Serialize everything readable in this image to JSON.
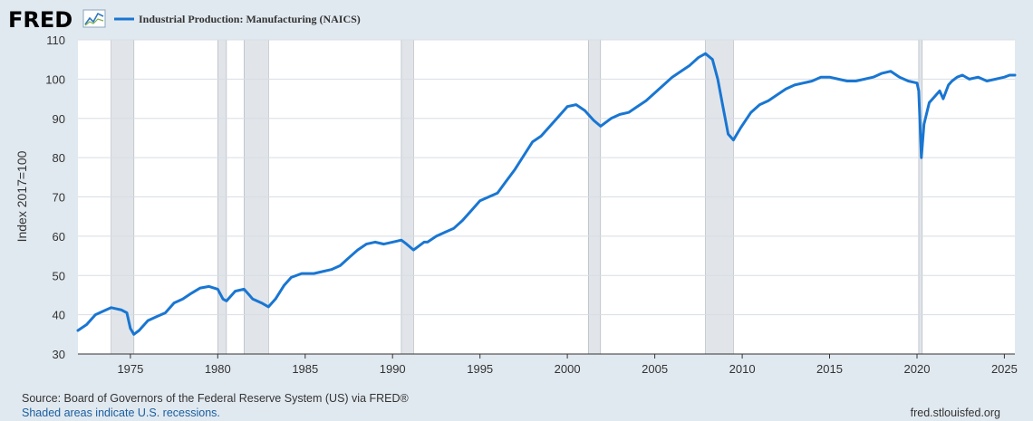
{
  "header": {
    "logo_text": "FRED",
    "logo_icon": "fred-trend-icon"
  },
  "colors": {
    "page_bg": "#e1e9f0",
    "plot_bg": "#ffffff",
    "series": "#1976d2",
    "recession": "#e1e5ea",
    "grid": "#d8dde3"
  },
  "chart_data": {
    "type": "line",
    "title": "",
    "xlabel": "",
    "ylabel": "Index 2017=100",
    "xlim": [
      1972.0,
      2025.6
    ],
    "ylim": [
      30,
      110
    ],
    "grid": "horizontal",
    "legend_position": "top-left",
    "x_tick_labels": [
      "1975",
      "1980",
      "1985",
      "1990",
      "1995",
      "2000",
      "2005",
      "2010",
      "2015",
      "2020",
      "2025"
    ],
    "y_tick_labels": [
      "30",
      "40",
      "50",
      "60",
      "70",
      "80",
      "90",
      "100",
      "110"
    ],
    "recessions": [
      [
        1973.9,
        1975.2
      ],
      [
        1980.0,
        1980.5
      ],
      [
        1981.5,
        1982.9
      ],
      [
        1990.5,
        1991.2
      ],
      [
        2001.2,
        2001.9
      ],
      [
        2007.9,
        2009.5
      ],
      [
        2020.1,
        2020.3
      ]
    ],
    "series": [
      {
        "name": "Industrial Production: Manufacturing (NAICS)",
        "points": [
          [
            1972.0,
            36.0
          ],
          [
            1972.5,
            37.5
          ],
          [
            1973.0,
            40.0
          ],
          [
            1973.5,
            41.0
          ],
          [
            1973.9,
            41.8
          ],
          [
            1974.5,
            41.2
          ],
          [
            1974.8,
            40.5
          ],
          [
            1975.0,
            36.5
          ],
          [
            1975.2,
            35.0
          ],
          [
            1975.5,
            36.0
          ],
          [
            1976.0,
            38.5
          ],
          [
            1976.5,
            39.5
          ],
          [
            1977.0,
            40.5
          ],
          [
            1977.5,
            43.0
          ],
          [
            1978.0,
            44.0
          ],
          [
            1978.5,
            45.5
          ],
          [
            1979.0,
            46.8
          ],
          [
            1979.5,
            47.2
          ],
          [
            1980.0,
            46.5
          ],
          [
            1980.3,
            44.0
          ],
          [
            1980.5,
            43.5
          ],
          [
            1980.8,
            45.0
          ],
          [
            1981.0,
            46.0
          ],
          [
            1981.5,
            46.5
          ],
          [
            1981.8,
            45.0
          ],
          [
            1982.0,
            44.0
          ],
          [
            1982.5,
            43.0
          ],
          [
            1982.9,
            42.0
          ],
          [
            1983.3,
            44.0
          ],
          [
            1983.8,
            47.5
          ],
          [
            1984.2,
            49.5
          ],
          [
            1984.8,
            50.5
          ],
          [
            1985.5,
            50.5
          ],
          [
            1986.0,
            51.0
          ],
          [
            1986.5,
            51.5
          ],
          [
            1987.0,
            52.5
          ],
          [
            1987.5,
            54.5
          ],
          [
            1988.0,
            56.5
          ],
          [
            1988.5,
            58.0
          ],
          [
            1989.0,
            58.5
          ],
          [
            1989.5,
            58.0
          ],
          [
            1990.0,
            58.5
          ],
          [
            1990.5,
            59.0
          ],
          [
            1990.8,
            58.0
          ],
          [
            1991.2,
            56.5
          ],
          [
            1991.8,
            58.5
          ],
          [
            1992.0,
            58.5
          ],
          [
            1992.5,
            60.0
          ],
          [
            1993.0,
            61.0
          ],
          [
            1993.5,
            62.0
          ],
          [
            1994.0,
            64.0
          ],
          [
            1994.5,
            66.5
          ],
          [
            1995.0,
            69.0
          ],
          [
            1995.5,
            70.0
          ],
          [
            1996.0,
            71.0
          ],
          [
            1996.5,
            74.0
          ],
          [
            1997.0,
            77.0
          ],
          [
            1997.5,
            80.5
          ],
          [
            1998.0,
            84.0
          ],
          [
            1998.5,
            85.5
          ],
          [
            1999.0,
            88.0
          ],
          [
            1999.5,
            90.5
          ],
          [
            2000.0,
            93.0
          ],
          [
            2000.5,
            93.5
          ],
          [
            2001.0,
            92.0
          ],
          [
            2001.5,
            89.5
          ],
          [
            2001.9,
            88.0
          ],
          [
            2002.5,
            90.0
          ],
          [
            2003.0,
            91.0
          ],
          [
            2003.5,
            91.5
          ],
          [
            2004.0,
            93.0
          ],
          [
            2004.5,
            94.5
          ],
          [
            2005.0,
            96.5
          ],
          [
            2005.5,
            98.5
          ],
          [
            2006.0,
            100.5
          ],
          [
            2006.5,
            102.0
          ],
          [
            2007.0,
            103.5
          ],
          [
            2007.5,
            105.5
          ],
          [
            2007.9,
            106.5
          ],
          [
            2008.3,
            105.0
          ],
          [
            2008.6,
            100.0
          ],
          [
            2008.9,
            93.0
          ],
          [
            2009.2,
            86.0
          ],
          [
            2009.5,
            84.5
          ],
          [
            2009.9,
            87.5
          ],
          [
            2010.5,
            91.5
          ],
          [
            2011.0,
            93.5
          ],
          [
            2011.5,
            94.5
          ],
          [
            2012.0,
            96.0
          ],
          [
            2012.5,
            97.5
          ],
          [
            2013.0,
            98.5
          ],
          [
            2013.5,
            99.0
          ],
          [
            2014.0,
            99.5
          ],
          [
            2014.5,
            100.5
          ],
          [
            2015.0,
            100.5
          ],
          [
            2015.5,
            100.0
          ],
          [
            2016.0,
            99.5
          ],
          [
            2016.5,
            99.5
          ],
          [
            2017.0,
            100.0
          ],
          [
            2017.5,
            100.5
          ],
          [
            2018.0,
            101.5
          ],
          [
            2018.5,
            102.0
          ],
          [
            2019.0,
            100.5
          ],
          [
            2019.5,
            99.5
          ],
          [
            2020.0,
            99.0
          ],
          [
            2020.1,
            97.0
          ],
          [
            2020.25,
            80.0
          ],
          [
            2020.4,
            88.5
          ],
          [
            2020.7,
            94.0
          ],
          [
            2021.0,
            95.5
          ],
          [
            2021.3,
            97.0
          ],
          [
            2021.5,
            95.0
          ],
          [
            2021.8,
            98.5
          ],
          [
            2022.0,
            99.5
          ],
          [
            2022.3,
            100.5
          ],
          [
            2022.6,
            101.0
          ],
          [
            2023.0,
            100.0
          ],
          [
            2023.5,
            100.5
          ],
          [
            2024.0,
            99.5
          ],
          [
            2024.5,
            100.0
          ],
          [
            2025.0,
            100.5
          ],
          [
            2025.3,
            101.0
          ],
          [
            2025.6,
            101.0
          ]
        ]
      }
    ]
  },
  "footer": {
    "source": "Source: Board of Governors of the Federal Reserve System (US) via FRED®",
    "note": "Shaded areas indicate U.S. recessions.",
    "url": "fred.stlouisfed.org"
  }
}
